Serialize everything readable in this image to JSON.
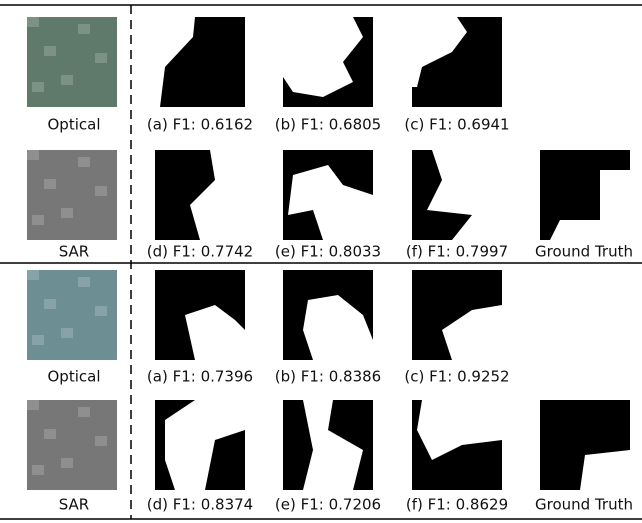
{
  "groups": [
    {
      "optical_label": "Optical",
      "sar_label": "SAR",
      "captions": [
        "(a) F1: 0.6162",
        "(b) F1: 0.6805",
        "(c) F1: 0.6941",
        "(d) F1: 0.7742",
        "(e) F1: 0.8033",
        "(f) F1: 0.7997"
      ],
      "ground_truth": "Ground Truth"
    },
    {
      "optical_label": "Optical",
      "sar_label": "SAR",
      "captions": [
        "(a) F1: 0.7396",
        "(b) F1: 0.8386",
        "(c) F1: 0.9252",
        "(d) F1: 0.8374",
        "(e) F1: 0.7206",
        "(f) F1: 0.8629"
      ],
      "ground_truth": "Ground Truth"
    }
  ]
}
